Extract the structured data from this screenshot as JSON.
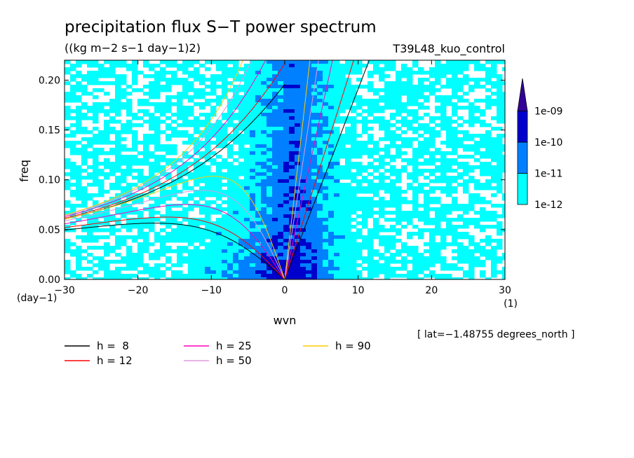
{
  "chart_data": {
    "type": "heatmap",
    "title": "precipitation flux S−T power spectrum",
    "subtitle": "((kg m−2 s−1 day−1)2)",
    "experiment": "T39L48_kuo_control",
    "xlabel": "wvn",
    "xunit": "(1)",
    "ylabel": "freq",
    "yunit": "(day−1)",
    "xlim": [
      -30,
      30
    ],
    "ylim": [
      0,
      0.22
    ],
    "xticks": [
      "−30",
      "−20",
      "−10",
      "0",
      "10",
      "20",
      "30"
    ],
    "xtick_values": [
      -30,
      -20,
      -10,
      0,
      10,
      20,
      30
    ],
    "yticks": [
      "0.00",
      "0.05",
      "0.10",
      "0.15",
      "0.20"
    ],
    "ytick_values": [
      0,
      0.05,
      0.1,
      0.15,
      0.2
    ],
    "annotation": "[ lat=−1.48755 degrees_north ]",
    "colorbar": {
      "labels": [
        "1e-12",
        "1e-11",
        "1e-10",
        "1e-09"
      ],
      "colors": [
        "#00ffff",
        "#0080ff",
        "#0000cc",
        "#330099"
      ]
    },
    "dispersion_curves": [
      {
        "name": "h =  8",
        "h": 8,
        "color": "#000000"
      },
      {
        "name": "h = 12",
        "h": 12,
        "color": "#ff0000"
      },
      {
        "name": "h = 25",
        "h": 25,
        "color": "#ff00bb"
      },
      {
        "name": "h = 50",
        "h": 50,
        "color": "#dd99dd"
      },
      {
        "name": "h = 90",
        "h": 90,
        "color": "#ffcc00"
      }
    ]
  }
}
